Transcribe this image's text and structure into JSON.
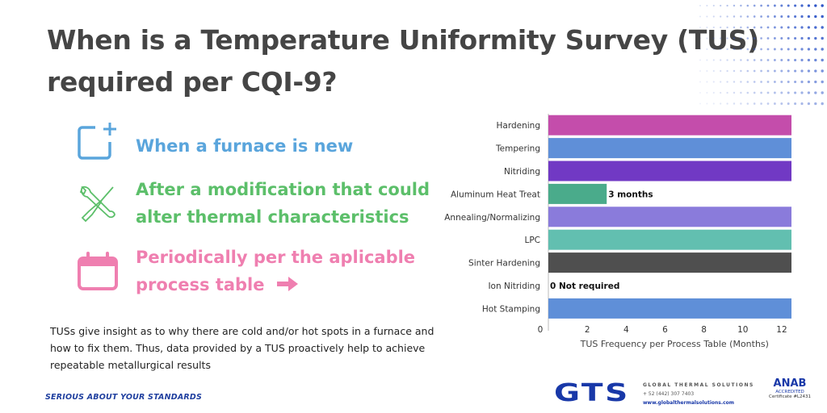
{
  "title": {
    "line1": "When is a Temperature Uniformity Survey (TUS)",
    "line2": "required per CQI-9?"
  },
  "items": [
    {
      "icon": "new-square-plus-icon",
      "line1": "When a furnace is new",
      "line2": "",
      "color": "#5aa5dc"
    },
    {
      "icon": "wrench-screwdriver-icon",
      "line1": "After a modification that could",
      "line2": "alter thermal characteristics",
      "color": "#5cbf6a"
    },
    {
      "icon": "calendar-icon",
      "line1": "Periodically per the aplicable",
      "line2": "process table",
      "color": "#ef7fb0"
    }
  ],
  "paragraph": "TUSs give insight as to why there are cold and/or hot spots in a furnace and how to fix them. Thus, data provided by a TUS proactively help to achieve repeatable metallurgical results",
  "footer": "SERIOUS ABOUT YOUR STANDARDS",
  "logo": {
    "brand": "GTS",
    "name": "GLOBAL THERMAL SOLUTIONS",
    "phone": "+ 52 (442) 307 7403",
    "website": "www.globalthermalsolutions.com"
  },
  "accreditation": {
    "brand": "ANAB",
    "sub": "ACCREDITED",
    "cert": "Certificate #L2431"
  },
  "chart_data": {
    "type": "bar",
    "orientation": "horizontal",
    "categories": [
      "Hardening",
      "Tempering",
      "Nitriding",
      "Aluminum Heat Treat",
      "Annealing/Normalizing",
      "LPC",
      "Sinter Hardening",
      "Ion Nitriding",
      "Hot Stamping"
    ],
    "values": [
      12.5,
      12.5,
      12.5,
      3,
      12.5,
      12.5,
      12.5,
      0,
      12.5
    ],
    "colors": [
      "#c44dab",
      "#5f8fd8",
      "#7139c4",
      "#4aab8b",
      "#8a7bdb",
      "#62bfb0",
      "#4f4f4f",
      "#5f8fd8",
      "#5f8fd8"
    ],
    "data_labels": [
      "",
      "",
      "",
      "3 months",
      "",
      "",
      "",
      "0 Not required",
      ""
    ],
    "xlabel": "TUS Frequency per Process Table (Months)",
    "xticks": [
      0,
      2,
      4,
      6,
      8,
      10,
      12
    ],
    "xlim": [
      0,
      12.5
    ],
    "grid": false
  }
}
